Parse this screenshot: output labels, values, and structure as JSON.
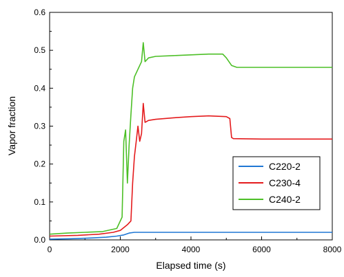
{
  "chart_data": {
    "type": "line",
    "title": "",
    "xlabel": "Elapsed time (s)",
    "ylabel": "Vapor fraction",
    "xlim": [
      0,
      8000
    ],
    "ylim": [
      0.0,
      0.6
    ],
    "xticks": [
      0,
      2000,
      4000,
      6000,
      8000
    ],
    "yticks": [
      0.0,
      0.1,
      0.2,
      0.3,
      0.4,
      0.5,
      0.6
    ],
    "xtick_labels": [
      "0",
      "2000",
      "4000",
      "6000",
      "8000"
    ],
    "ytick_labels": [
      "0.0",
      "0.1",
      "0.2",
      "0.3",
      "0.4",
      "0.5",
      "0.6"
    ],
    "grid": false,
    "legend_position": "center-right",
    "series": [
      {
        "name": "C220-2",
        "color": "#1f77d4",
        "points": [
          [
            0,
            0.002
          ],
          [
            600,
            0.003
          ],
          [
            1200,
            0.005
          ],
          [
            1600,
            0.007
          ],
          [
            1900,
            0.01
          ],
          [
            2100,
            0.013
          ],
          [
            2250,
            0.018
          ],
          [
            2400,
            0.02
          ],
          [
            4000,
            0.02
          ],
          [
            6000,
            0.02
          ],
          [
            8000,
            0.02
          ]
        ]
      },
      {
        "name": "C230-4",
        "color": "#e41a1c",
        "points": [
          [
            0,
            0.01
          ],
          [
            800,
            0.012
          ],
          [
            1400,
            0.015
          ],
          [
            1800,
            0.02
          ],
          [
            2000,
            0.025
          ],
          [
            2200,
            0.04
          ],
          [
            2300,
            0.05
          ],
          [
            2350,
            0.15
          ],
          [
            2400,
            0.22
          ],
          [
            2450,
            0.26
          ],
          [
            2500,
            0.3
          ],
          [
            2550,
            0.26
          ],
          [
            2600,
            0.28
          ],
          [
            2650,
            0.36
          ],
          [
            2700,
            0.31
          ],
          [
            2800,
            0.315
          ],
          [
            3000,
            0.318
          ],
          [
            3500,
            0.322
          ],
          [
            4000,
            0.325
          ],
          [
            4500,
            0.327
          ],
          [
            5000,
            0.325
          ],
          [
            5100,
            0.32
          ],
          [
            5150,
            0.27
          ],
          [
            5200,
            0.267
          ],
          [
            6000,
            0.266
          ],
          [
            7000,
            0.266
          ],
          [
            8000,
            0.266
          ]
        ]
      },
      {
        "name": "C240-2",
        "color": "#4cbf26",
        "points": [
          [
            0,
            0.015
          ],
          [
            500,
            0.018
          ],
          [
            1000,
            0.02
          ],
          [
            1500,
            0.022
          ],
          [
            1900,
            0.03
          ],
          [
            2050,
            0.06
          ],
          [
            2100,
            0.26
          ],
          [
            2150,
            0.29
          ],
          [
            2200,
            0.15
          ],
          [
            2250,
            0.25
          ],
          [
            2300,
            0.33
          ],
          [
            2350,
            0.4
          ],
          [
            2400,
            0.43
          ],
          [
            2500,
            0.45
          ],
          [
            2600,
            0.47
          ],
          [
            2650,
            0.52
          ],
          [
            2700,
            0.47
          ],
          [
            2800,
            0.48
          ],
          [
            3000,
            0.484
          ],
          [
            3500,
            0.486
          ],
          [
            4000,
            0.488
          ],
          [
            4500,
            0.49
          ],
          [
            4900,
            0.49
          ],
          [
            5000,
            0.48
          ],
          [
            5150,
            0.46
          ],
          [
            5300,
            0.455
          ],
          [
            6000,
            0.455
          ],
          [
            7000,
            0.455
          ],
          [
            8000,
            0.455
          ]
        ]
      }
    ]
  }
}
